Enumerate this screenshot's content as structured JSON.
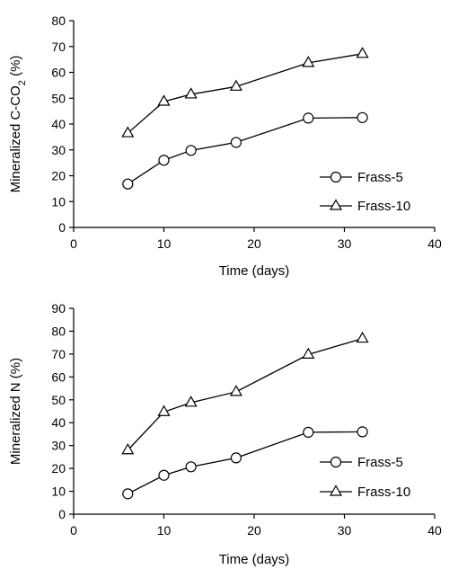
{
  "chart_data": [
    {
      "type": "line",
      "xlabel": "Time (days)",
      "ylabel": "Mineralized C-CO",
      "ylabel_subscript": "2",
      "ylabel_suffix": " (%)",
      "xlim": [
        0,
        40
      ],
      "ylim": [
        0,
        80
      ],
      "xticks": [
        0,
        10,
        20,
        30,
        40
      ],
      "yticks": [
        0,
        10,
        20,
        30,
        40,
        50,
        60,
        70,
        80
      ],
      "grid": false,
      "legend_position": "bottom-right",
      "series": [
        {
          "name": "Frass-5",
          "marker": "circle",
          "x": [
            6,
            10,
            13,
            18,
            26,
            32
          ],
          "y": [
            16.8,
            26.0,
            29.8,
            32.9,
            42.3,
            42.5
          ]
        },
        {
          "name": "Frass-10",
          "marker": "triangle",
          "x": [
            6,
            10,
            13,
            18,
            26,
            32
          ],
          "y": [
            36.5,
            48.7,
            51.5,
            54.5,
            63.7,
            67.2
          ]
        }
      ]
    },
    {
      "type": "line",
      "xlabel": "Time (days)",
      "ylabel": "Mineralized N (%)",
      "xlim": [
        0,
        40
      ],
      "ylim": [
        0,
        90
      ],
      "xticks": [
        0,
        10,
        20,
        30,
        40
      ],
      "yticks": [
        0,
        10,
        20,
        30,
        40,
        50,
        60,
        70,
        80,
        90
      ],
      "grid": false,
      "legend_position": "bottom-right",
      "series": [
        {
          "name": "Frass-5",
          "marker": "circle",
          "x": [
            6,
            10,
            13,
            18,
            26,
            32
          ],
          "y": [
            8.9,
            17.0,
            20.7,
            24.6,
            35.8,
            36.0
          ]
        },
        {
          "name": "Frass-10",
          "marker": "triangle",
          "x": [
            6,
            10,
            13,
            18,
            26,
            32
          ],
          "y": [
            28.0,
            44.7,
            48.8,
            53.5,
            69.8,
            76.8
          ]
        }
      ]
    }
  ]
}
